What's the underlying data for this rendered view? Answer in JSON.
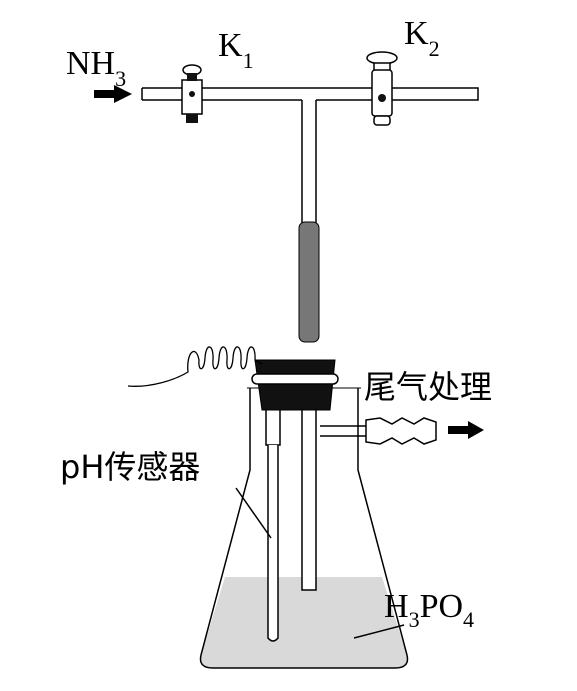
{
  "labels": {
    "nh3_main": "NH",
    "nh3_sub": "3",
    "k1_main": "K",
    "k1_sub": "1",
    "k2_main": "K",
    "k2_sub": "2",
    "tail_gas": "尾气处理",
    "ph_sensor": "pH传感器",
    "acid_h": "H",
    "acid_sub3": "3",
    "acid_po": "PO",
    "acid_sub4": "4"
  },
  "colors": {
    "line": "#000000",
    "glass": "#ffffff",
    "liquid": "#d9d9d9",
    "rubber": "#777777",
    "stopper": "#111111",
    "arrow": "#000000"
  },
  "icons": {
    "inlet_arrow": "arrow-right",
    "outlet_arrow": "arrow-right",
    "valve_k1": "stopcock",
    "valve_k2": "stopcock",
    "heater": "coil"
  }
}
